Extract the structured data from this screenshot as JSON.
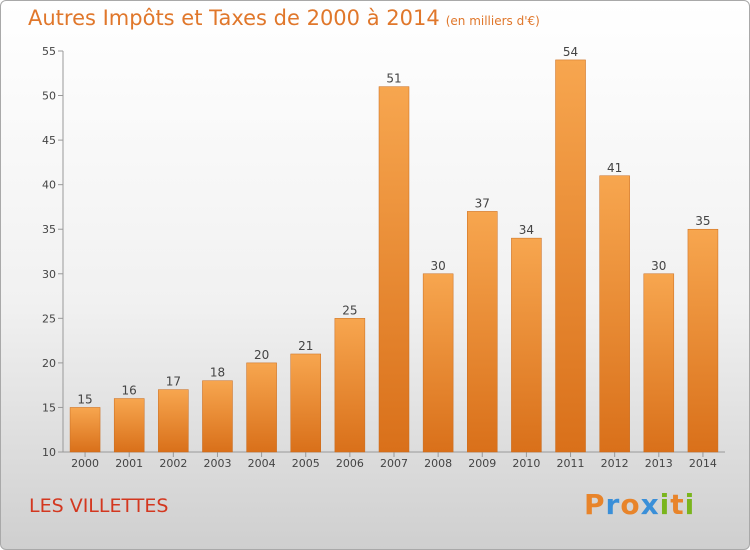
{
  "chart_data": {
    "type": "bar",
    "title": "Autres Impôts et Taxes de 2000 à 2014",
    "unit_label": "(en milliers d'€)",
    "categories": [
      "2000",
      "2001",
      "2002",
      "2003",
      "2004",
      "2005",
      "2006",
      "2007",
      "2008",
      "2009",
      "2010",
      "2011",
      "2012",
      "2013",
      "2014"
    ],
    "values": [
      15,
      16,
      17,
      18,
      20,
      21,
      25,
      51,
      30,
      37,
      34,
      54,
      41,
      30,
      35
    ],
    "ylim": [
      10,
      55
    ],
    "yticks": [
      10,
      15,
      20,
      25,
      30,
      35,
      40,
      45,
      50,
      55
    ],
    "xlabel": "",
    "ylabel": "",
    "grid": false
  },
  "footer": {
    "town": "LES VILLETTES",
    "brand_letters": [
      "P",
      "r",
      "o",
      "x",
      "i",
      "t",
      "i"
    ],
    "brand_colors": [
      "#e8842a",
      "#3a8fd8",
      "#e8842a",
      "#3a8fd8",
      "#7ab51d",
      "#e8842a",
      "#7ab51d"
    ]
  },
  "colors": {
    "title": "#e0772b",
    "bar_light": "#f7a64f",
    "bar_dark": "#d9701a",
    "town": "#d3371f"
  }
}
